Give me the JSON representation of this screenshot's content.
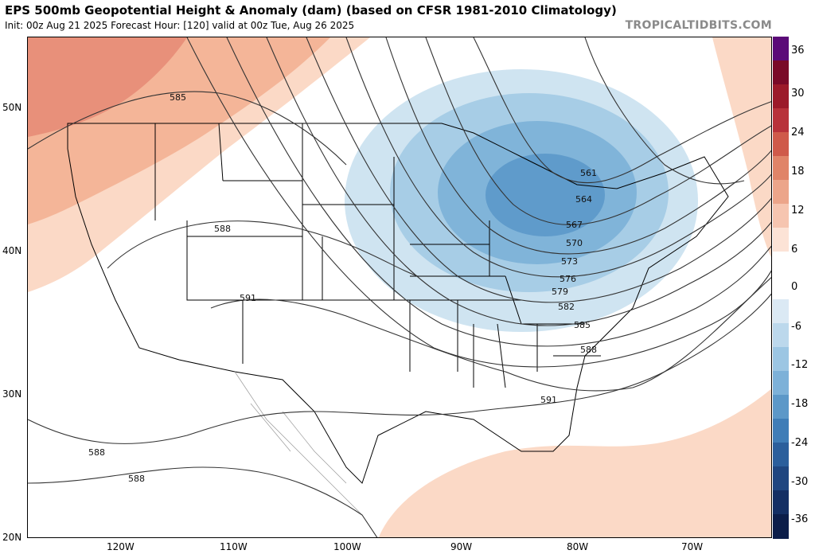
{
  "header": {
    "title": "EPS 500mb Geopotential Height & Anomaly (dam) (based on CFSR 1981-2010 Climatology)",
    "subtitle": "Init: 00z Aug 21 2025   Forecast Hour: [120]   valid at 00z Tue, Aug 26 2025",
    "brand": "TROPICALTIDBITS.COM"
  },
  "axes": {
    "lat_labels": [
      "50N",
      "40N",
      "30N",
      "20N"
    ],
    "lon_labels": [
      "120W",
      "110W",
      "100W",
      "90W",
      "80W",
      "70W"
    ]
  },
  "contour_labels": [
    "585",
    "588",
    "591",
    "561",
    "564",
    "567",
    "570",
    "573",
    "576",
    "579",
    "582",
    "585",
    "588",
    "591",
    "588",
    "588"
  ],
  "colorbar": {
    "ticks": [
      "36",
      "30",
      "24",
      "18",
      "12",
      "6",
      "0",
      "-6",
      "-12",
      "-18",
      "-24",
      "-30",
      "-36"
    ],
    "colors": [
      "#5b0a78",
      "#7a0a28",
      "#9c1a2a",
      "#b8323a",
      "#cf5a4a",
      "#e08468",
      "#eca58a",
      "#f6c5b0",
      "#fce3d6",
      "#ffffff",
      "#ffffff",
      "#dbe9f4",
      "#bcd8ec",
      "#9cc6e3",
      "#7db1d8",
      "#5c98c8",
      "#3f7db7",
      "#2b5f9c",
      "#1f4680",
      "#142f64",
      "#0c1e4a"
    ]
  },
  "legend_colors": {
    "positive_light": "#fbd9c6",
    "positive_mid": "#f4b598",
    "positive_strong": "#e8907a",
    "negative_1": "#cfe4f1",
    "negative_2": "#a7cde6",
    "negative_3": "#80b4d9",
    "negative_4": "#5f9bcb"
  }
}
